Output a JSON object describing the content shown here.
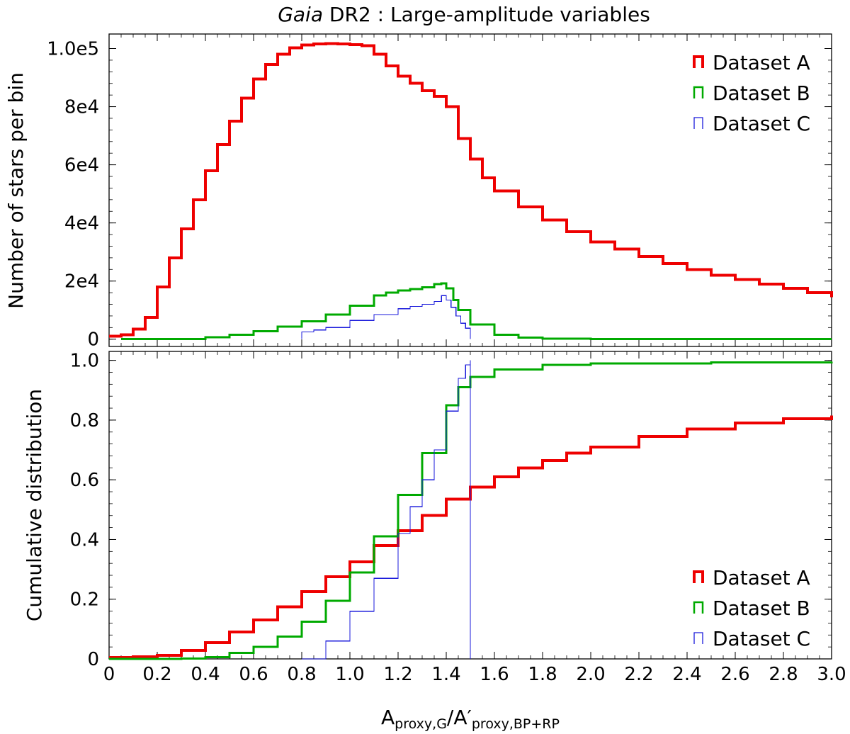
{
  "title": {
    "italic": "Gaia",
    "rest": "DR2 :  Large-amplitude variables"
  },
  "xlabel": {
    "main": "A",
    "sub1": "proxy,G",
    "mid": "/A′",
    "sub2": "proxy,BP+RP"
  },
  "colors": {
    "dataset_a": "#ee0000",
    "dataset_b": "#00aa00",
    "dataset_c": "#1a1adb"
  },
  "chart_data": [
    {
      "type": "histogram",
      "panel": "top",
      "ylabel": "Number of stars per bin",
      "xlim": [
        0,
        3.0
      ],
      "ylim": [
        -2500,
        105000
      ],
      "yticks": [
        0,
        20000,
        40000,
        60000,
        80000,
        100000
      ],
      "ytick_labels": [
        "0",
        "2e4",
        "4e4",
        "6e4",
        "8e4",
        "1.0e5"
      ],
      "legend": {
        "position": "top-right",
        "entries": [
          "Dataset A",
          "Dataset B",
          "Dataset C"
        ]
      },
      "series": [
        {
          "name": "Dataset A",
          "x": [
            0,
            0.05,
            0.1,
            0.15,
            0.2,
            0.25,
            0.3,
            0.35,
            0.4,
            0.45,
            0.5,
            0.55,
            0.6,
            0.65,
            0.7,
            0.75,
            0.8,
            0.85,
            0.9,
            0.95,
            1.0,
            1.05,
            1.1,
            1.15,
            1.2,
            1.25,
            1.3,
            1.35,
            1.4,
            1.45,
            1.5,
            1.55,
            1.6,
            1.7,
            1.8,
            1.9,
            2.0,
            2.1,
            2.2,
            2.3,
            2.4,
            2.5,
            2.6,
            2.7,
            2.8,
            2.9,
            3.0
          ],
          "y": [
            1000,
            1500,
            3500,
            7500,
            18000,
            28000,
            38000,
            48000,
            58000,
            67000,
            75000,
            83000,
            89500,
            94500,
            98000,
            100200,
            101200,
            101600,
            101700,
            101600,
            101300,
            101000,
            98000,
            94000,
            90500,
            88000,
            85500,
            83500,
            80000,
            69000,
            62000,
            55500,
            51000,
            45500,
            41000,
            37000,
            33500,
            31000,
            28500,
            26000,
            24000,
            22000,
            20500,
            19000,
            17500,
            16000,
            14500
          ]
        },
        {
          "name": "Dataset B",
          "x": [
            0.05,
            0.3,
            0.4,
            0.5,
            0.6,
            0.7,
            0.8,
            0.9,
            1.0,
            1.1,
            1.15,
            1.2,
            1.25,
            1.3,
            1.35,
            1.38,
            1.4,
            1.43,
            1.45,
            1.5,
            1.6,
            1.7,
            1.8,
            2.0,
            3.0
          ],
          "y": [
            0,
            0,
            700,
            1500,
            2800,
            4300,
            6200,
            8500,
            11500,
            15000,
            16000,
            16800,
            17300,
            17800,
            19000,
            19200,
            17500,
            13500,
            10000,
            5000,
            1500,
            500,
            150,
            0,
            0
          ]
        },
        {
          "name": "Dataset C",
          "x": [
            0.8,
            0.85,
            0.9,
            1.0,
            1.1,
            1.2,
            1.25,
            1.3,
            1.35,
            1.38,
            1.4,
            1.42,
            1.44,
            1.46,
            1.48,
            1.5
          ],
          "y": [
            2500,
            3200,
            4000,
            6500,
            8500,
            10500,
            11300,
            12000,
            13000,
            15000,
            13500,
            11000,
            8000,
            5500,
            3800,
            2600
          ]
        }
      ]
    },
    {
      "type": "line",
      "panel": "bottom",
      "ylabel": "Cumulative distribution",
      "xlabel": "A_proxy,G/A′_proxy,BP+RP",
      "xlim": [
        0,
        3.0
      ],
      "ylim": [
        0,
        1.03
      ],
      "xticks": [
        0,
        0.2,
        0.4,
        0.6,
        0.8,
        1.0,
        1.2,
        1.4,
        1.6,
        1.8,
        2.0,
        2.2,
        2.4,
        2.6,
        2.8,
        3.0
      ],
      "xtick_labels": [
        "0",
        "0.2",
        "0.4",
        "0.6",
        "0.8",
        "1.0",
        "1.2",
        "1.4",
        "1.6",
        "1.8",
        "2.0",
        "2.2",
        "2.4",
        "2.6",
        "2.8",
        "3.0"
      ],
      "yticks": [
        0,
        0.2,
        0.4,
        0.6,
        0.8,
        1.0
      ],
      "ytick_labels": [
        "0",
        "0.2",
        "0.4",
        "0.6",
        "0.8",
        "1.0"
      ],
      "legend": {
        "position": "bottom-right",
        "entries": [
          "Dataset A",
          "Dataset B",
          "Dataset C"
        ]
      },
      "series": [
        {
          "name": "Dataset A",
          "x": [
            0,
            0.1,
            0.2,
            0.3,
            0.4,
            0.5,
            0.6,
            0.7,
            0.8,
            0.9,
            1.0,
            1.1,
            1.2,
            1.3,
            1.4,
            1.5,
            1.6,
            1.7,
            1.8,
            1.9,
            2.0,
            2.2,
            2.4,
            2.6,
            2.8,
            3.0
          ],
          "y": [
            0.005,
            0.007,
            0.012,
            0.028,
            0.055,
            0.09,
            0.13,
            0.175,
            0.225,
            0.275,
            0.325,
            0.38,
            0.43,
            0.48,
            0.535,
            0.575,
            0.61,
            0.64,
            0.665,
            0.69,
            0.71,
            0.745,
            0.77,
            0.79,
            0.805,
            0.815
          ]
        },
        {
          "name": "Dataset B",
          "x": [
            0,
            0.3,
            0.4,
            0.5,
            0.6,
            0.7,
            0.8,
            0.9,
            1.0,
            1.1,
            1.2,
            1.3,
            1.4,
            1.45,
            1.5,
            1.6,
            1.8,
            2.0,
            2.5,
            3.0
          ],
          "y": [
            0,
            0.001,
            0.006,
            0.02,
            0.04,
            0.075,
            0.125,
            0.195,
            0.29,
            0.41,
            0.55,
            0.69,
            0.85,
            0.91,
            0.945,
            0.97,
            0.985,
            0.99,
            0.993,
            0.995
          ]
        },
        {
          "name": "Dataset C",
          "x": [
            0.8,
            0.9,
            1.0,
            1.1,
            1.2,
            1.25,
            1.3,
            1.35,
            1.4,
            1.45,
            1.48,
            1.5,
            1.5
          ],
          "y": [
            0,
            0.06,
            0.16,
            0.27,
            0.42,
            0.51,
            0.6,
            0.7,
            0.83,
            0.94,
            0.985,
            1.0,
            0.0
          ]
        }
      ]
    }
  ]
}
